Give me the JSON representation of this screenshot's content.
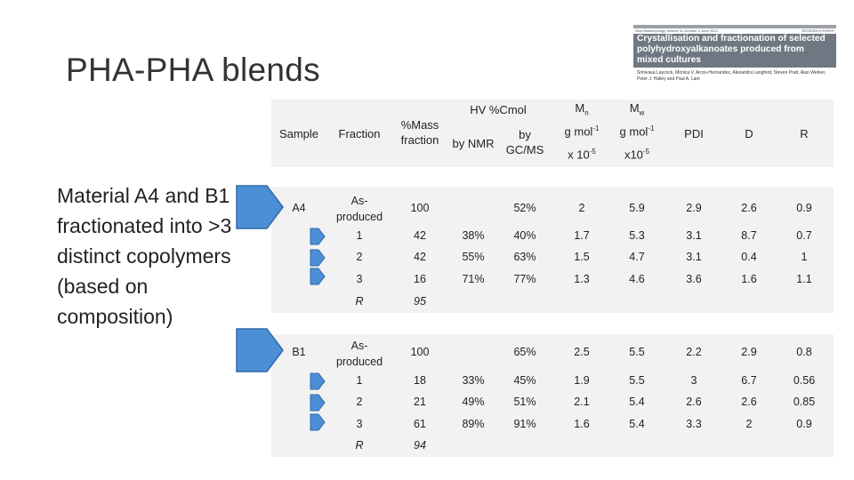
{
  "slide_title": "PHA-PHA blends",
  "paper": {
    "header_left": "New Biotechnology Volume 31 Number 4 June 2014",
    "header_right": "RESEARCH PAPER",
    "title": "Crystallisation and fractionation of selected polyhydroxyalkanoates produced from mixed cultures",
    "authors": "Srinivasa Laycock, Monica V. Arcos-Hernandez, Alexandra Langford, Steven Pratt, Alan Werker, Peter J. Halley and Paul A. Lant"
  },
  "side_text": "Material A4 and B1 fractionated into >3 distinct copolymers (based on composition)",
  "colors": {
    "arrow_fill": "#4d8fd6",
    "arrow_stroke": "#2f6aa8",
    "table_bg": "#f2f2f2"
  },
  "header": {
    "sample": "Sample",
    "fraction": "Fraction",
    "mass_fraction": "%Mass fraction",
    "hv_group": "HV %Cmol",
    "hv_nmr": "by NMR",
    "hv_gcms": "by GC/MS",
    "mn": "M",
    "mn_sub": "n",
    "mn_unit": "g mol",
    "mn_unit_sup": "-1",
    "mn_scale": "x 10",
    "mn_scale_sup": "-5",
    "mw": "M",
    "mw_sub": "w",
    "mw_unit": "g mol",
    "mw_unit_sup": "-1",
    "mw_scale": "x10",
    "mw_scale_sup": "-5",
    "pdi": "PDI",
    "d": "D",
    "r": "R"
  },
  "groups": [
    {
      "sample": "A4",
      "rows": [
        {
          "fraction": "As-produced",
          "mass": "100",
          "nmr": "",
          "gcms": "52%",
          "mn": "2",
          "mw": "5.9",
          "pdi": "2.9",
          "d": "2.6",
          "r": "0.9"
        },
        {
          "fraction": "1",
          "mass": "42",
          "nmr": "38%",
          "gcms": "40%",
          "mn": "1.7",
          "mw": "5.3",
          "pdi": "3.1",
          "d": "8.7",
          "r": "0.7"
        },
        {
          "fraction": "2",
          "mass": "42",
          "nmr": "55%",
          "gcms": "63%",
          "mn": "1.5",
          "mw": "4.7",
          "pdi": "3.1",
          "d": "0.4",
          "r": "1"
        },
        {
          "fraction": "3",
          "mass": "16",
          "nmr": "71%",
          "gcms": "77%",
          "mn": "1.3",
          "mw": "4.6",
          "pdi": "3.6",
          "d": "1.6",
          "r": "1.1"
        },
        {
          "fraction": "R",
          "mass": "95",
          "nmr": "",
          "gcms": "",
          "mn": "",
          "mw": "",
          "pdi": "",
          "d": "",
          "r": ""
        }
      ]
    },
    {
      "sample": "B1",
      "rows": [
        {
          "fraction": "As-produced",
          "mass": "100",
          "nmr": "",
          "gcms": "65%",
          "mn": "2.5",
          "mw": "5.5",
          "pdi": "2.2",
          "d": "2.9",
          "r": "0.8"
        },
        {
          "fraction": "1",
          "mass": "18",
          "nmr": "33%",
          "gcms": "45%",
          "mn": "1.9",
          "mw": "5.5",
          "pdi": "3",
          "d": "6.7",
          "r": "0.56"
        },
        {
          "fraction": "2",
          "mass": "21",
          "nmr": "49%",
          "gcms": "51%",
          "mn": "2.1",
          "mw": "5.4",
          "pdi": "2.6",
          "d": "2.6",
          "r": "0.85"
        },
        {
          "fraction": "3",
          "mass": "61",
          "nmr": "89%",
          "gcms": "91%",
          "mn": "1.6",
          "mw": "5.4",
          "pdi": "3.3",
          "d": "2",
          "r": "0.9"
        },
        {
          "fraction": "R",
          "mass": "94",
          "nmr": "",
          "gcms": "",
          "mn": "",
          "mw": "",
          "pdi": "",
          "d": "",
          "r": ""
        }
      ]
    }
  ]
}
